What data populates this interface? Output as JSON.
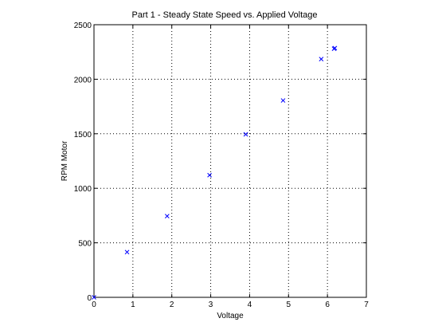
{
  "chart_data": {
    "type": "scatter",
    "title": "Part 1 - Steady State Speed vs. Applied Voltage",
    "xlabel": "Voltage",
    "ylabel": "RPM Motor",
    "xlim": [
      0,
      7
    ],
    "ylim": [
      0,
      2500
    ],
    "xticks": [
      0,
      1,
      2,
      3,
      4,
      5,
      6,
      7
    ],
    "yticks": [
      0,
      500,
      1000,
      1500,
      2000,
      2500
    ],
    "grid": true,
    "marker": "x",
    "marker_color": "#0000ff",
    "series": [
      {
        "x": [
          0.0,
          0.85,
          1.88,
          2.97,
          3.9,
          4.86,
          5.84,
          6.17,
          6.19
        ],
        "y": [
          0,
          415,
          745,
          1120,
          1495,
          1805,
          2185,
          2280,
          2285
        ]
      }
    ]
  }
}
